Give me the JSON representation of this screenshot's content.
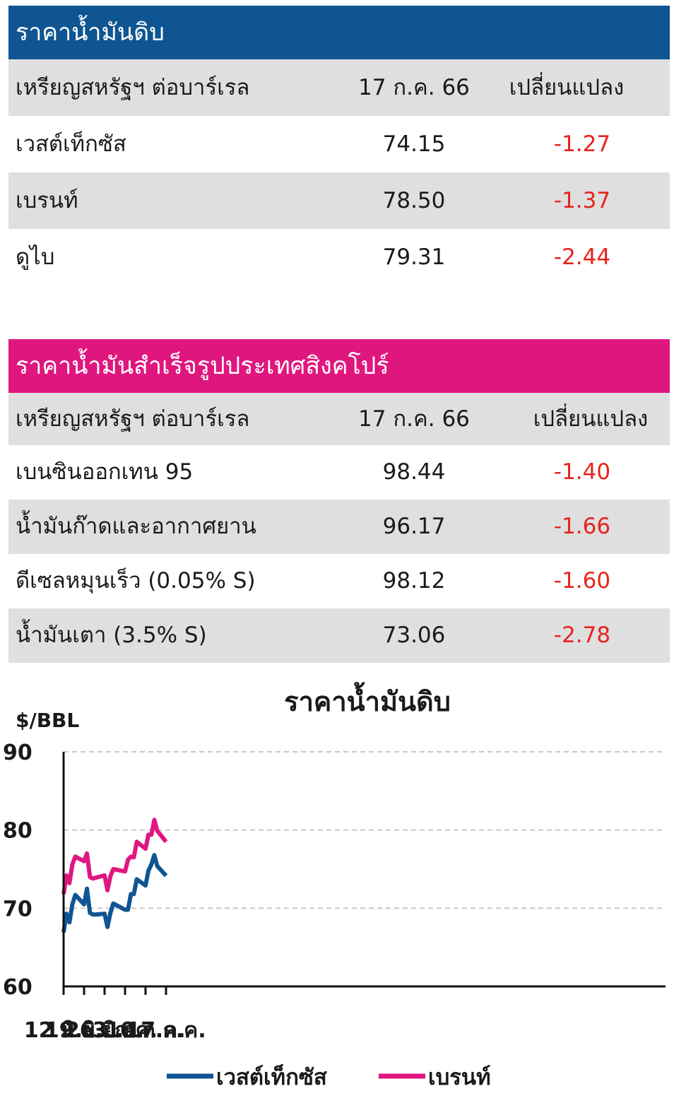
{
  "crude_table": {
    "title": "ราคาน้ำมันดิบ",
    "header": [
      "เหรียญสหรัฐฯ ต่อบาร์เรล",
      "17 ก.ค. 66",
      "เปลี่ยนแปลง"
    ],
    "rows": [
      {
        "name": "เวสต์เท็กซัส",
        "price": "74.15",
        "change": "-1.27"
      },
      {
        "name": "เบรนท์",
        "price": "78.50",
        "change": "-1.37"
      },
      {
        "name": "ดูไบ",
        "price": "79.31",
        "change": "-2.44"
      }
    ]
  },
  "product_table": {
    "title": "ราคาน้ำมันสำเร็จรูปประเทศสิงคโปร์",
    "header": [
      "เหรียญสหรัฐฯ ต่อบาร์เรล",
      "17 ก.ค. 66",
      "เปลี่ยนแปลง"
    ],
    "rows": [
      {
        "name": "เบนซินออกเทน 95",
        "price": "98.44",
        "change": "-1.40"
      },
      {
        "name": "น้ำมันก๊าดและอากาศยาน",
        "price": "96.17",
        "change": "-1.66"
      },
      {
        "name": "ดีเซลหมุนเร็ว (0.05% S)",
        "price": "98.12",
        "change": "-1.60"
      },
      {
        "name": "น้ำมันเตา (3.5% S)",
        "price": "73.06",
        "change": "-2.78"
      }
    ]
  },
  "colors": {
    "crude_header": "#0f5592",
    "product_header": "#e0167f",
    "negative": "#e8241b",
    "wti_line": "#0f5592",
    "brent_line": "#e0167f"
  },
  "chart_data": {
    "type": "line",
    "title": "ราคาน้ำมันดิบ",
    "ylabel": "$/BBL",
    "ylim": [
      60,
      90
    ],
    "yticks": [
      60,
      70,
      80,
      90
    ],
    "grid": "horizontal dashed",
    "xticks": [
      "12 มิ.ย.",
      "19 มิ.ย.",
      "26 มิ.ย.",
      "3 ก.ค.",
      "10 ก.ค.",
      "17 ก.ค."
    ],
    "x_range_days": [
      0,
      40
    ],
    "x": [
      0,
      1,
      2,
      3,
      4,
      7,
      8,
      9,
      10,
      11,
      14,
      15,
      16,
      17,
      21,
      22,
      23,
      24,
      25,
      28,
      29,
      30,
      31,
      32,
      35
    ],
    "series": [
      {
        "name": "เวสต์เท็กซัส",
        "color": "#0f5592",
        "values": [
          66.9,
          69.3,
          68.2,
          70.5,
          71.7,
          70.5,
          72.5,
          69.4,
          69.2,
          69.2,
          69.3,
          67.6,
          69.4,
          70.6,
          69.8,
          69.8,
          71.8,
          71.8,
          73.7,
          72.9,
          74.8,
          75.6,
          76.8,
          75.4,
          74.15
        ]
      },
      {
        "name": "เบรนท์",
        "color": "#e0167f",
        "values": [
          71.8,
          74.2,
          73.2,
          75.6,
          76.6,
          76.0,
          77.0,
          74.0,
          73.8,
          73.9,
          74.2,
          72.3,
          74.1,
          75.0,
          74.7,
          76.2,
          76.6,
          76.5,
          78.5,
          77.6,
          79.4,
          79.4,
          81.3,
          79.9,
          78.5
        ]
      }
    ],
    "legend": "bottom-center"
  }
}
